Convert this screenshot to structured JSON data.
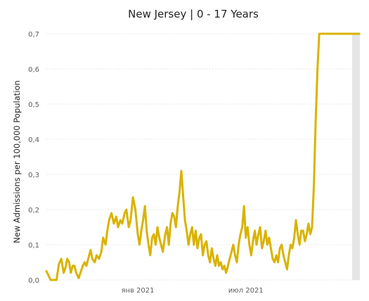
{
  "chart_data": {
    "type": "line",
    "title": "New Jersey | 0 - 17 Years",
    "xlabel": "",
    "ylabel": "New Admissions per 100,000 Population",
    "x_range": [
      "2020-08-01",
      "2022-01-08"
    ],
    "ylim": [
      0,
      0.7
    ],
    "y_ticks": [
      0,
      0.1,
      0.2,
      0.3,
      0.4,
      0.5,
      0.6,
      0.7
    ],
    "y_tick_labels": [
      "0,0",
      "0,1",
      "0,2",
      "0,3",
      "0,4",
      "0,5",
      "0,6",
      "0,7"
    ],
    "x_ticks": [
      {
        "date": "2021-01-01",
        "label": "янв 2021"
      },
      {
        "date": "2021-07-01",
        "label": "июл 2021"
      }
    ],
    "grid": "horizontal-dotted",
    "legend": "none",
    "shaded_region": {
      "start": "2021-12-26",
      "end": "2022-01-08",
      "color": "#e6e6e6"
    },
    "series": [
      {
        "color": "#d9b300",
        "x": [
          "2020-08-01",
          "2020-08-04",
          "2020-08-08",
          "2020-08-11",
          "2020-08-14",
          "2020-08-18",
          "2020-08-22",
          "2020-08-26",
          "2020-08-30",
          "2020-09-02",
          "2020-09-05",
          "2020-09-08",
          "2020-09-11",
          "2020-09-14",
          "2020-09-17",
          "2020-09-20",
          "2020-09-24",
          "2020-09-27",
          "2020-10-01",
          "2020-10-04",
          "2020-10-07",
          "2020-10-10",
          "2020-10-14",
          "2020-10-17",
          "2020-10-21",
          "2020-10-24",
          "2020-10-28",
          "2020-11-01",
          "2020-11-04",
          "2020-11-08",
          "2020-11-11",
          "2020-11-14",
          "2020-11-18",
          "2020-11-22",
          "2020-11-26",
          "2020-11-29",
          "2020-12-03",
          "2020-12-06",
          "2020-12-10",
          "2020-12-13",
          "2020-12-17",
          "2020-12-20",
          "2020-12-24",
          "2020-12-28",
          "2021-01-01",
          "2021-01-04",
          "2021-01-07",
          "2021-01-10",
          "2021-01-13",
          "2021-01-16",
          "2021-01-19",
          "2021-01-22",
          "2021-01-25",
          "2021-01-28",
          "2021-01-31",
          "2021-02-03",
          "2021-02-06",
          "2021-02-09",
          "2021-02-12",
          "2021-02-16",
          "2021-02-19",
          "2021-02-22",
          "2021-02-25",
          "2021-02-28",
          "2021-03-03",
          "2021-03-06",
          "2021-03-09",
          "2021-03-12",
          "2021-03-15",
          "2021-03-18",
          "2021-03-21",
          "2021-03-24",
          "2021-03-27",
          "2021-03-30",
          "2021-04-02",
          "2021-04-05",
          "2021-04-08",
          "2021-04-11",
          "2021-04-14",
          "2021-04-17",
          "2021-04-20",
          "2021-04-23",
          "2021-04-26",
          "2021-04-29",
          "2021-05-02",
          "2021-05-05",
          "2021-05-08",
          "2021-05-11",
          "2021-05-14",
          "2021-05-17",
          "2021-05-20",
          "2021-05-23",
          "2021-05-26",
          "2021-05-29",
          "2021-06-01",
          "2021-06-04",
          "2021-06-07",
          "2021-06-10",
          "2021-06-13",
          "2021-06-16",
          "2021-06-19",
          "2021-06-22",
          "2021-06-25",
          "2021-06-28",
          "2021-07-01",
          "2021-07-04",
          "2021-07-07",
          "2021-07-10",
          "2021-07-13",
          "2021-07-16",
          "2021-07-19",
          "2021-07-22",
          "2021-07-25",
          "2021-07-28",
          "2021-07-31",
          "2021-08-03",
          "2021-08-06",
          "2021-08-09",
          "2021-08-12",
          "2021-08-15",
          "2021-08-18",
          "2021-08-21",
          "2021-08-24",
          "2021-08-27",
          "2021-08-30",
          "2021-09-02",
          "2021-09-05",
          "2021-09-08",
          "2021-09-11",
          "2021-09-14",
          "2021-09-17",
          "2021-09-20",
          "2021-09-23",
          "2021-09-26",
          "2021-09-29",
          "2021-10-02",
          "2021-10-05",
          "2021-10-08",
          "2021-10-11",
          "2021-10-14",
          "2021-10-17",
          "2021-10-20",
          "2021-10-23",
          "2021-10-26",
          "2021-10-29",
          "2021-11-01",
          "2021-11-04",
          "2021-11-07",
          "2021-11-10",
          "2021-11-13",
          "2021-11-16",
          "2021-11-19",
          "2021-11-22",
          "2021-11-25",
          "2021-11-28",
          "2021-12-01",
          "2021-12-04",
          "2021-12-07",
          "2021-12-10",
          "2021-12-13",
          "2021-12-16",
          "2021-12-19",
          "2021-12-22",
          "2021-12-24",
          "2021-12-26",
          "2021-12-28",
          "2021-12-30",
          "2022-01-01",
          "2022-01-03",
          "2022-01-05",
          "2022-01-07"
        ],
        "y": [
          0.025,
          0.015,
          0.0,
          0.0,
          0.0,
          0.0,
          0.045,
          0.06,
          0.02,
          0.035,
          0.06,
          0.05,
          0.02,
          0.04,
          0.04,
          0.02,
          0.005,
          0.02,
          0.04,
          0.05,
          0.04,
          0.06,
          0.085,
          0.06,
          0.05,
          0.07,
          0.06,
          0.08,
          0.12,
          0.1,
          0.14,
          0.17,
          0.19,
          0.16,
          0.18,
          0.15,
          0.17,
          0.16,
          0.19,
          0.2,
          0.15,
          0.17,
          0.235,
          0.2,
          0.13,
          0.1,
          0.14,
          0.17,
          0.21,
          0.14,
          0.1,
          0.07,
          0.12,
          0.13,
          0.1,
          0.15,
          0.12,
          0.1,
          0.08,
          0.13,
          0.15,
          0.1,
          0.16,
          0.19,
          0.18,
          0.15,
          0.21,
          0.25,
          0.31,
          0.24,
          0.17,
          0.14,
          0.1,
          0.13,
          0.15,
          0.1,
          0.14,
          0.09,
          0.12,
          0.13,
          0.07,
          0.1,
          0.11,
          0.07,
          0.05,
          0.09,
          0.06,
          0.04,
          0.07,
          0.04,
          0.05,
          0.03,
          0.04,
          0.02,
          0.04,
          0.06,
          0.08,
          0.1,
          0.07,
          0.05,
          0.1,
          0.13,
          0.15,
          0.21,
          0.12,
          0.15,
          0.1,
          0.07,
          0.11,
          0.14,
          0.1,
          0.13,
          0.15,
          0.09,
          0.11,
          0.14,
          0.1,
          0.12,
          0.09,
          0.06,
          0.05,
          0.07,
          0.05,
          0.09,
          0.1,
          0.07,
          0.05,
          0.03,
          0.07,
          0.1,
          0.09,
          0.12,
          0.17,
          0.13,
          0.1,
          0.14,
          0.14,
          0.11,
          0.13,
          0.16,
          0.13,
          0.15,
          0.27,
          0.45,
          0.6,
          0.7,
          0.7,
          0.7,
          0.7,
          0.7,
          0.7,
          0.7,
          0.7,
          0.7,
          0.7,
          0.7,
          0.7,
          0.7,
          0.7,
          0.7,
          0.7,
          0.7,
          0.7,
          0.7,
          0.7,
          0.7,
          0.7,
          0.7,
          0.7,
          0.7,
          0.7
        ]
      }
    ]
  }
}
